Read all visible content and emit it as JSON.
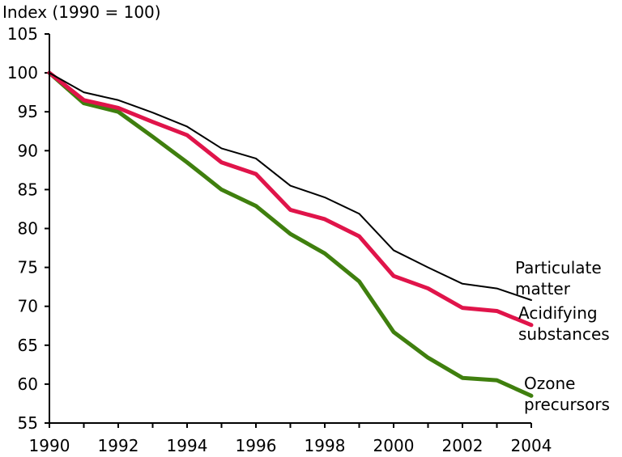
{
  "chart_data": {
    "type": "line",
    "title": "",
    "ylabel": "Index (1990 = 100)",
    "xlabel": "",
    "xlim": [
      1990,
      2004
    ],
    "ylim": [
      55,
      105
    ],
    "x_ticks": [
      1990,
      1992,
      1994,
      1996,
      1998,
      2000,
      2002,
      2004
    ],
    "y_ticks": [
      55,
      60,
      65,
      70,
      75,
      80,
      85,
      90,
      95,
      100,
      105
    ],
    "x_tick_labels": [
      "1990",
      "1992",
      "1994",
      "1996",
      "1998",
      "2000",
      "2002",
      "2004"
    ],
    "y_tick_labels": [
      "55",
      "60",
      "65",
      "70",
      "75",
      "80",
      "85",
      "90",
      "95",
      "100",
      "105"
    ],
    "grid": false,
    "legend": "inline labels at line ends",
    "x": [
      1990,
      1991,
      1992,
      1993,
      1994,
      1995,
      1996,
      1997,
      1998,
      1999,
      2000,
      2001,
      2002,
      2003,
      2004
    ],
    "series": [
      {
        "name": "Particulate matter",
        "label_lines": [
          "Particulate",
          "matter"
        ],
        "color": "#000000",
        "values": [
          100,
          97.5,
          96.5,
          94.9,
          93.1,
          90.3,
          89.0,
          85.5,
          84.0,
          81.9,
          77.2,
          75.0,
          72.9,
          72.3,
          70.8
        ]
      },
      {
        "name": "Acidifying substances",
        "label_lines": [
          "Acidifying",
          "substances"
        ],
        "color": "#e0144a",
        "values": [
          100,
          96.5,
          95.5,
          93.7,
          92.0,
          88.5,
          87.0,
          82.4,
          81.2,
          79.0,
          73.9,
          72.3,
          69.8,
          69.4,
          67.6
        ]
      },
      {
        "name": "Ozone precursors",
        "label_lines": [
          "Ozone",
          "precursors"
        ],
        "color": "#3f7f0e",
        "values": [
          100,
          96.1,
          95.0,
          91.8,
          88.5,
          85.0,
          82.9,
          79.3,
          76.8,
          73.2,
          66.7,
          63.4,
          60.8,
          60.5,
          58.5
        ]
      }
    ]
  }
}
